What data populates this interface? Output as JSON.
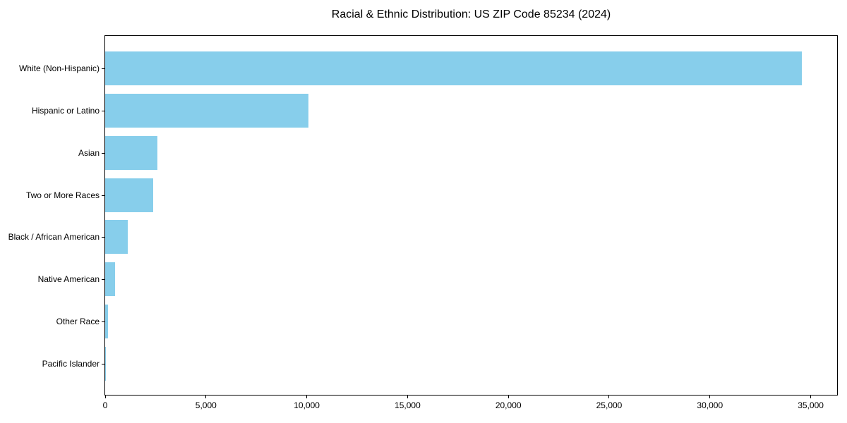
{
  "chart_data": {
    "type": "bar",
    "orientation": "horizontal",
    "title": "Racial & Ethnic Distribution: US ZIP Code 85234 (2024)",
    "categories": [
      "White (Non-Hispanic)",
      "Hispanic or Latino",
      "Asian",
      "Two or More Races",
      "Black / African American",
      "Native American",
      "Other Race",
      "Pacific Islander"
    ],
    "values": [
      34570,
      10080,
      2600,
      2380,
      1110,
      490,
      140,
      15
    ],
    "xlabel": "",
    "ylabel": "",
    "xlim": [
      0,
      36310
    ],
    "xticks": [
      0,
      5000,
      10000,
      15000,
      20000,
      25000,
      30000,
      35000
    ],
    "xtick_labels": [
      "0",
      "5,000",
      "10,000",
      "15,000",
      "20,000",
      "25,000",
      "30,000",
      "35,000"
    ],
    "bar_color": "#87CEEB",
    "background_color": "#ffffff",
    "axis_color": "#000000",
    "grid": false,
    "legend": null
  }
}
